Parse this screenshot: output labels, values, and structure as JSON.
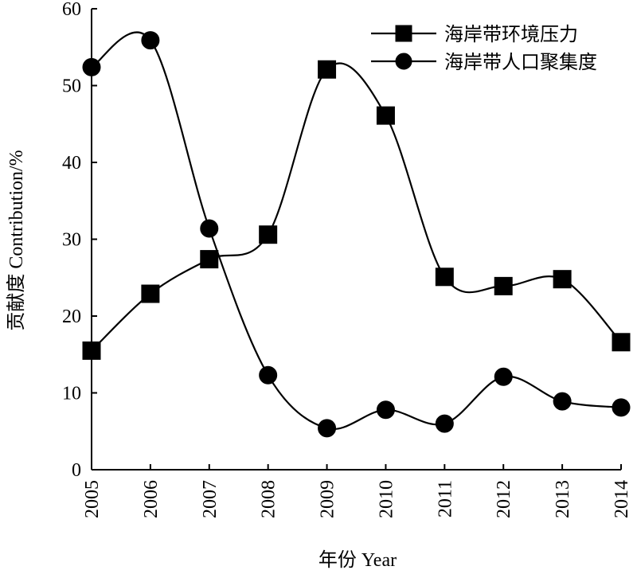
{
  "chart_data": {
    "type": "line",
    "x": [
      2005,
      2006,
      2007,
      2008,
      2009,
      2010,
      2011,
      2012,
      2013,
      2014
    ],
    "series": [
      {
        "name": "海岸带环境压力",
        "marker": "square",
        "values": [
          15.5,
          22.9,
          27.4,
          30.6,
          52.1,
          46.1,
          25.1,
          23.9,
          24.8,
          16.6
        ]
      },
      {
        "name": "海岸带人口聚集度",
        "marker": "circle",
        "values": [
          52.4,
          55.9,
          31.4,
          12.3,
          5.4,
          7.8,
          6.0,
          12.1,
          8.9,
          8.1
        ]
      }
    ],
    "title": "",
    "xlabel": "年份 Year",
    "ylabel": "贡献度 Contribution/%",
    "ylim": [
      0,
      60
    ],
    "yticks": [
      0,
      10,
      20,
      30,
      40,
      50,
      60
    ],
    "xticks": [
      "2005",
      "2006",
      "2007",
      "2008",
      "2009",
      "2010",
      "2011",
      "2012",
      "2013",
      "2014"
    ],
    "grid": false,
    "legend": "top-right",
    "colors": {
      "line": "#000000"
    }
  }
}
